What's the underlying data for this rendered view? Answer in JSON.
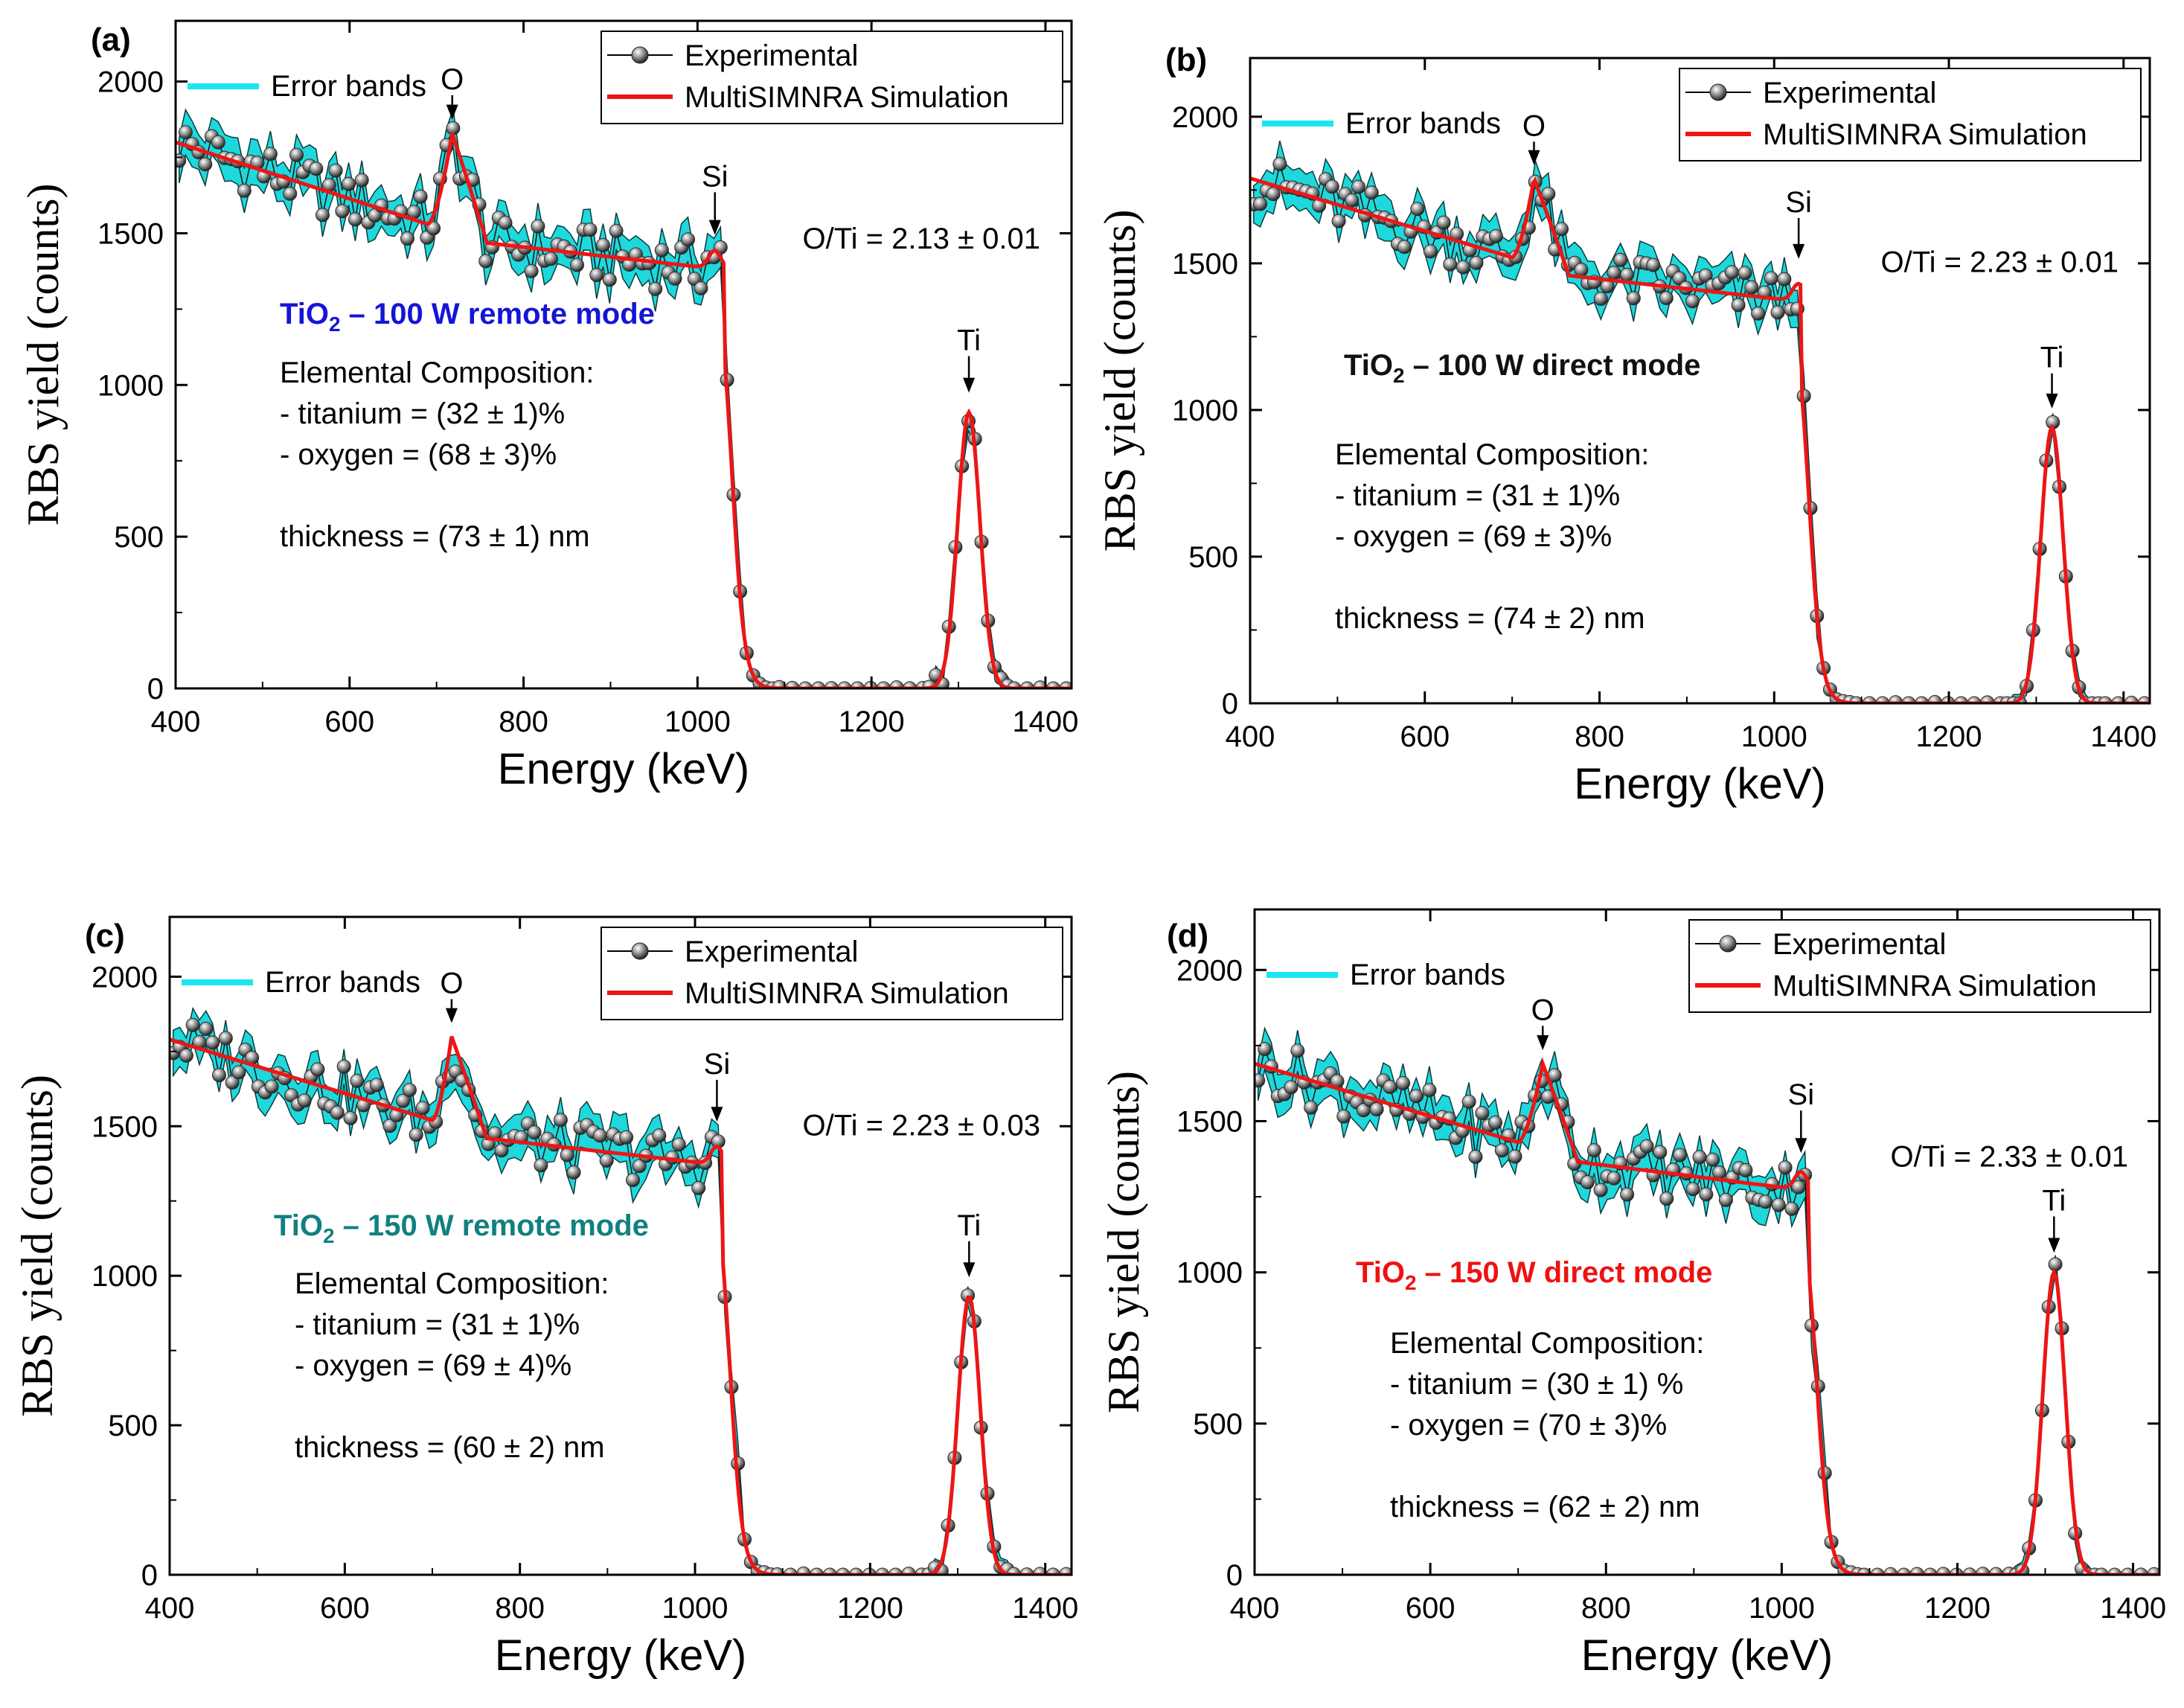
{
  "chart_data": [
    {
      "type": "line",
      "panel": "(a)",
      "xlabel": "Energy (keV)",
      "ylabel": "RBS yield (counts)",
      "xlim": [
        400,
        1430
      ],
      "ylim": [
        0,
        2200
      ],
      "xticks": [
        "400",
        "600",
        "800",
        "1000",
        "1200",
        "1400"
      ],
      "yticks": [
        "0",
        "500",
        "1000",
        "1500",
        "2000"
      ],
      "legend": [
        "Experimental",
        "MultiSIMNRA Simulation"
      ],
      "error_band_label": "Error bands",
      "series": [
        {
          "name": "Experimental",
          "kind": "scatter"
        },
        {
          "name": "MultiSIMNRA Simulation",
          "kind": "line"
        }
      ],
      "peaks": {
        "o_E": 718,
        "o_H": 1830,
        "o_base": 1540,
        "si_E": 1020,
        "si_Y": 1400,
        "ti_E": 1312,
        "ti_H": 910
      },
      "sim_ref": [
        [
          400,
          1800
        ],
        [
          690,
          1530
        ],
        [
          1030,
          1380
        ]
      ],
      "peak_labels": {
        "o": "O",
        "si": "Si",
        "ti": "Ti"
      },
      "ratio": "O/Ti = 2.13 ± 0.01",
      "title_pre": "TiO",
      "title_sub": "2",
      "title_post": " – 100 W remote mode",
      "title_color": "#1515d6",
      "comp_head": "Elemental Composition:",
      "comp_ti": "- titanium = (32 ± 1)%",
      "comp_o": "- oxygen = (68 ± 3)%",
      "thickness": "thickness = (73 ± 1) nm"
    },
    {
      "type": "line",
      "panel": "(b)",
      "xlabel": "Energy (keV)",
      "ylabel": "RBS yield (counts)",
      "xlim": [
        400,
        1430
      ],
      "ylim": [
        0,
        2200
      ],
      "xticks": [
        "400",
        "600",
        "800",
        "1000",
        "1200",
        "1400"
      ],
      "yticks": [
        "0",
        "500",
        "1000",
        "1500",
        "2000"
      ],
      "legend": [
        "Experimental",
        "MultiSIMNRA Simulation"
      ],
      "error_band_label": "Error bands",
      "series": [
        {
          "name": "Experimental",
          "kind": "scatter"
        },
        {
          "name": "MultiSIMNRA Simulation",
          "kind": "line"
        }
      ],
      "peaks": {
        "o_E": 725,
        "o_H": 1790,
        "o_base": 1530,
        "si_E": 1028,
        "si_Y": 1420,
        "ti_E": 1318,
        "ti_H": 940
      },
      "sim_ref": [
        [
          400,
          1790
        ],
        [
          700,
          1520
        ],
        [
          1030,
          1370
        ]
      ],
      "peak_labels": {
        "o": "O",
        "si": "Si",
        "ti": "Ti"
      },
      "ratio": "O/Ti = 2.23 ± 0.01",
      "title_pre": "TiO",
      "title_sub": "2",
      "title_post": " – 100 W direct mode",
      "title_color": "#111111",
      "comp_head": "Elemental Composition:",
      "comp_ti": "- titanium = (31 ± 1)%",
      "comp_o": "- oxygen = (69 ± 3)%",
      "thickness": "thickness = (74 ± 2) nm"
    },
    {
      "type": "line",
      "panel": "(c)",
      "xlabel": "Energy (keV)",
      "ylabel": "RBS yield (counts)",
      "xlim": [
        400,
        1430
      ],
      "ylim": [
        0,
        2200
      ],
      "xticks": [
        "400",
        "600",
        "800",
        "1000",
        "1200",
        "1400"
      ],
      "yticks": [
        "0",
        "500",
        "1000",
        "1500",
        "2000"
      ],
      "legend": [
        "Experimental",
        "MultiSIMNRA Simulation"
      ],
      "error_band_label": "Error bands",
      "series": [
        {
          "name": "Experimental",
          "kind": "scatter"
        },
        {
          "name": "MultiSIMNRA Simulation",
          "kind": "line"
        }
      ],
      "peaks": {
        "o_E": 722,
        "o_H": 1800,
        "o_base": 1530,
        "si_E": 1025,
        "si_Y": 1420,
        "ti_E": 1313,
        "ti_H": 930
      },
      "sim_ref": [
        [
          400,
          1790
        ],
        [
          700,
          1520
        ],
        [
          1030,
          1370
        ]
      ],
      "peak_labels": {
        "o": "O",
        "si": "Si",
        "ti": "Ti"
      },
      "ratio": "O/Ti = 2.23 ± 0.03",
      "title_pre": "TiO",
      "title_sub": "2",
      "title_post": " – 150 W remote mode",
      "title_color": "#118080",
      "comp_head": "Elemental Composition:",
      "comp_ti": "- titanium = (31 ± 1)%",
      "comp_o": "- oxygen = (69 ± 4)%",
      "thickness": "thickness = (60 ± 2) nm"
    },
    {
      "type": "line",
      "panel": "(d)",
      "xlabel": "Energy (keV)",
      "ylabel": "RBS yield (counts)",
      "xlim": [
        400,
        1430
      ],
      "ylim": [
        0,
        2200
      ],
      "xticks": [
        "400",
        "600",
        "800",
        "1000",
        "1200",
        "1400"
      ],
      "yticks": [
        "0",
        "500",
        "1000",
        "1500",
        "2000"
      ],
      "legend": [
        "Experimental",
        "MultiSIMNRA Simulation"
      ],
      "error_band_label": "Error bands",
      "series": [
        {
          "name": "Experimental",
          "kind": "scatter"
        },
        {
          "name": "MultiSIMNRA Simulation",
          "kind": "line"
        }
      ],
      "peaks": {
        "o_E": 728,
        "o_H": 1690,
        "o_base": 1430,
        "si_E": 1022,
        "si_Y": 1300,
        "ti_E": 1310,
        "ti_H": 1000
      },
      "sim_ref": [
        [
          400,
          1690
        ],
        [
          700,
          1430
        ],
        [
          1030,
          1270
        ]
      ],
      "peak_labels": {
        "o": "O",
        "si": "Si",
        "ti": "Ti"
      },
      "ratio": "O/Ti = 2.33 ± 0.01",
      "title_pre": "TiO",
      "title_sub": "2",
      "title_post": " – 150 W direct mode",
      "title_color": "#ee1111",
      "comp_head": "Elemental Composition:",
      "comp_ti": "- titanium = (30 ± 1) %",
      "comp_o": "- oxygen = (70 ± 3)%",
      "thickness": "thickness = (62 ± 2) nm"
    }
  ],
  "colors": {
    "band": "#1ed8dc",
    "sim": "#ee1515",
    "marker": "#2a2a2a",
    "axis": "#000000",
    "legend_band": "#19e6f0"
  }
}
